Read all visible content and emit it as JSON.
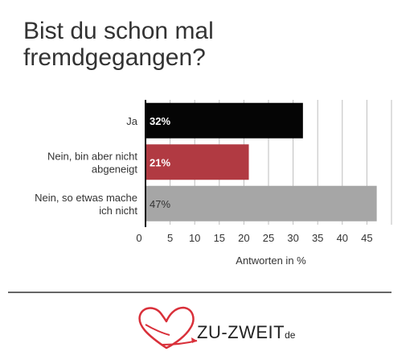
{
  "title_lines": [
    "Bist du schon mal",
    "fremdgegangen?"
  ],
  "chart_data": {
    "type": "bar",
    "orientation": "horizontal",
    "categories": [
      [
        "Ja"
      ],
      [
        "Nein, bin aber nicht",
        "abgeneigt"
      ],
      [
        "Nein, so etwas mache",
        "ich nicht"
      ]
    ],
    "values": [
      32,
      21,
      47
    ],
    "value_labels": [
      "32%",
      "21%",
      "47%"
    ],
    "bar_colors": [
      "#050505",
      "#b13a42",
      "#a6a6a6"
    ],
    "value_label_colors": [
      "#ffffff",
      "#ffffff",
      "#333333"
    ],
    "xlabel": "Antworten in %",
    "xlim": [
      0,
      50
    ],
    "xticks": [
      0,
      5,
      10,
      15,
      20,
      25,
      30,
      35,
      40,
      45
    ],
    "grid": true
  },
  "logo": {
    "text_main": "ZU-ZWEIT",
    "text_suffix": "de",
    "accent_color": "#d9303a"
  }
}
